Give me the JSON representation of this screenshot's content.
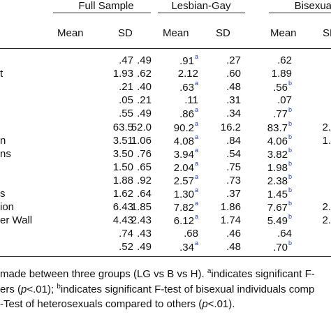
{
  "groups": [
    "Full Sample",
    "Lesbian-Gay",
    "Bisexual"
  ],
  "columns": [
    "Mean",
    "SD",
    "Mean",
    "SD",
    "Mean",
    "SD"
  ],
  "rows": [
    {
      "label": "",
      "cells": [
        [
          ".47",
          ""
        ],
        [
          ".49",
          ""
        ],
        [
          ".91",
          "a"
        ],
        [
          ".27",
          ""
        ],
        [
          ".62",
          ""
        ],
        [
          "",
          ""
        ]
      ]
    },
    {
      "label": "t",
      "cells": [
        [
          "1.93",
          ""
        ],
        [
          ".62",
          ""
        ],
        [
          "2.12",
          ""
        ],
        [
          ".60",
          ""
        ],
        [
          "1.89",
          ""
        ],
        [
          "",
          ""
        ]
      ]
    },
    {
      "label": "",
      "cells": [
        [
          ".21",
          ""
        ],
        [
          ".40",
          ""
        ],
        [
          ".63",
          "a"
        ],
        [
          ".48",
          ""
        ],
        [
          ".56",
          "b"
        ],
        [
          "",
          ""
        ]
      ]
    },
    {
      "label": "",
      "cells": [
        [
          ".05",
          ""
        ],
        [
          ".21",
          ""
        ],
        [
          ".11",
          ""
        ],
        [
          ".31",
          ""
        ],
        [
          ".07",
          ""
        ],
        [
          "",
          ""
        ]
      ]
    },
    {
      "label": "",
      "cells": [
        [
          ".55",
          ""
        ],
        [
          ".49",
          ""
        ],
        [
          ".86",
          "a"
        ],
        [
          ".34",
          ""
        ],
        [
          ".77",
          "b"
        ],
        [
          "",
          ""
        ]
      ]
    },
    {
      "label": "",
      "cells": [
        [
          "63.5",
          ""
        ],
        [
          "52.0",
          ""
        ],
        [
          "90.2",
          "a"
        ],
        [
          "16.2",
          ""
        ],
        [
          "83.7",
          "b"
        ],
        [
          "2.",
          ""
        ]
      ]
    },
    {
      "label": "n",
      "cells": [
        [
          "3.51",
          ""
        ],
        [
          "1.06",
          ""
        ],
        [
          "4.08",
          "a"
        ],
        [
          ".84",
          ""
        ],
        [
          "4.06",
          "b"
        ],
        [
          "1.",
          ""
        ]
      ]
    },
    {
      "label": "ns",
      "cells": [
        [
          "3.50",
          ""
        ],
        [
          ".76",
          ""
        ],
        [
          "3.94",
          "a"
        ],
        [
          ".54",
          ""
        ],
        [
          "3.82",
          "b"
        ],
        [
          "",
          ""
        ]
      ]
    },
    {
      "label": "",
      "cells": [
        [
          "1.50",
          ""
        ],
        [
          ".65",
          ""
        ],
        [
          "2.04",
          "a"
        ],
        [
          ".75",
          ""
        ],
        [
          "1.98",
          "b"
        ],
        [
          "",
          ""
        ]
      ]
    },
    {
      "label": "",
      "cells": [
        [
          "1.88",
          ""
        ],
        [
          ".92",
          ""
        ],
        [
          "2.57",
          "a"
        ],
        [
          ".73",
          ""
        ],
        [
          "2.38",
          "b"
        ],
        [
          "",
          ""
        ]
      ]
    },
    {
      "label": "s",
      "cells": [
        [
          "1.62",
          ""
        ],
        [
          ".64",
          ""
        ],
        [
          "1.30",
          "a"
        ],
        [
          ".37",
          ""
        ],
        [
          "1.45",
          "b"
        ],
        [
          "",
          ""
        ]
      ]
    },
    {
      "label": "ion",
      "cells": [
        [
          "6.43",
          ""
        ],
        [
          "1.85",
          ""
        ],
        [
          "7.82",
          "a"
        ],
        [
          "1.86",
          ""
        ],
        [
          "7.67",
          "b"
        ],
        [
          "2.",
          ""
        ]
      ]
    },
    {
      "label": "er Wall",
      "cells": [
        [
          "4.43",
          ""
        ],
        [
          "2.43",
          ""
        ],
        [
          "6.12",
          "a"
        ],
        [
          "1.74",
          ""
        ],
        [
          "5.49",
          "b"
        ],
        [
          "2.",
          ""
        ]
      ]
    },
    {
      "label": "",
      "cells": [
        [
          ".74",
          ""
        ],
        [
          ".43",
          ""
        ],
        [
          ".68",
          ""
        ],
        [
          ".46",
          ""
        ],
        [
          ".64",
          ""
        ],
        [
          "",
          ""
        ]
      ]
    },
    {
      "label": "",
      "cells": [
        [
          ".52",
          ""
        ],
        [
          ".49",
          ""
        ],
        [
          ".34",
          "a"
        ],
        [
          ".48",
          ""
        ],
        [
          ".70",
          "b"
        ],
        [
          "",
          ""
        ]
      ]
    }
  ],
  "note": {
    "line1_a": "made between three groups (LG vs B vs H). ",
    "line1_sup": "a",
    "line1_b": "indicates significant F-",
    "line2_a": "ers (",
    "line2_p": "p",
    "line2_b": "<.01); ",
    "line2_sup": "b",
    "line2_c": "indicates significant F-test of bisexual individuals comp",
    "line3_a": "-Test of heterosexuals compared to others (",
    "line3_p": "p",
    "line3_b": "<.01)."
  }
}
